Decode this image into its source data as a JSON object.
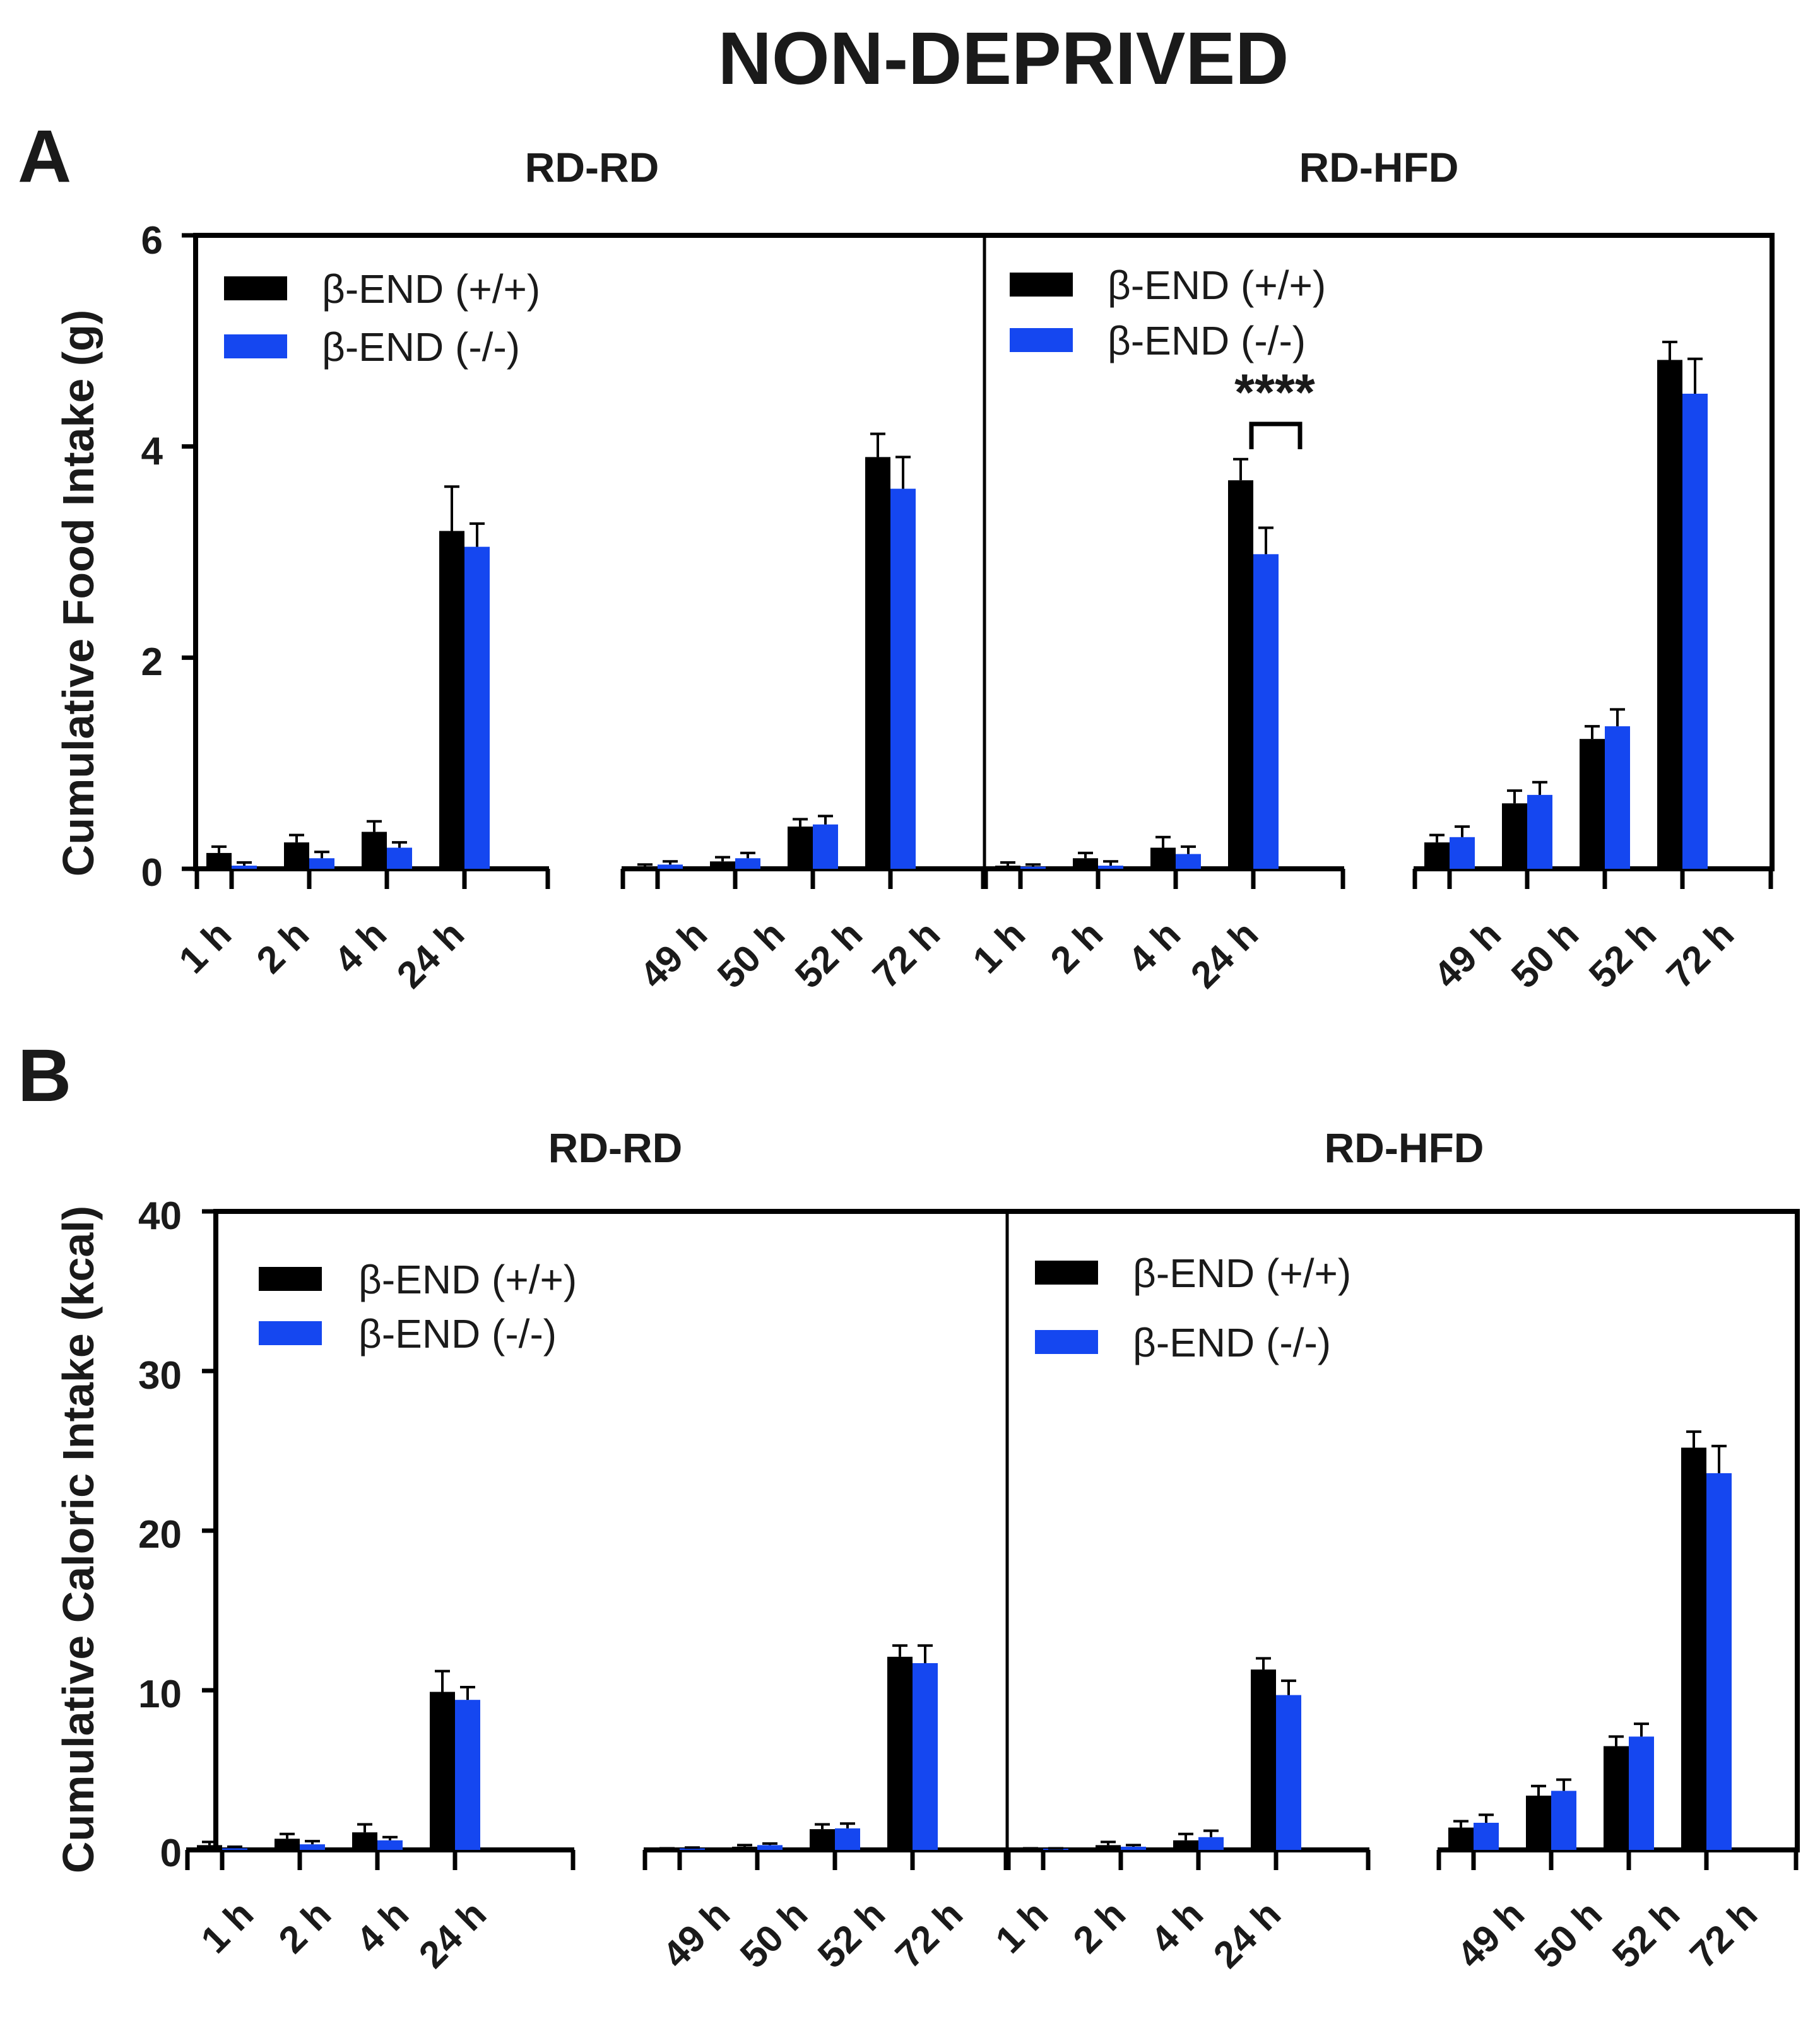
{
  "title": "NON-DEPRIVED",
  "colors": {
    "wt": "#000000",
    "ko": "#1547f0"
  },
  "chart_data": [
    {
      "panel": "A",
      "type": "bar",
      "ylabel": "Cumulative Food Intake (g)",
      "ylim": [
        0,
        6
      ],
      "yticks": [
        "0",
        "2",
        "4",
        "6"
      ],
      "ytick_values": [
        0,
        2,
        4,
        6
      ],
      "groups": [
        {
          "title": "RD-RD",
          "legend": [
            "β-END (+/+)",
            "β-END (-/-)"
          ],
          "segments": [
            {
              "categories": [
                "1 h",
                "2 h",
                "4 h",
                "24 h"
              ],
              "series": [
                {
                  "name": "β-END (+/+)",
                  "values": [
                    0.15,
                    0.25,
                    0.35,
                    3.2
                  ],
                  "errors": [
                    0.06,
                    0.07,
                    0.1,
                    0.42
                  ]
                },
                {
                  "name": "β-END (-/-)",
                  "values": [
                    0.03,
                    0.1,
                    0.2,
                    3.05
                  ],
                  "errors": [
                    0.03,
                    0.06,
                    0.05,
                    0.22
                  ]
                }
              ]
            },
            {
              "categories": [
                "49 h",
                "50 h",
                "52 h",
                "72 h"
              ],
              "series": [
                {
                  "name": "β-END (+/+)",
                  "values": [
                    0.02,
                    0.07,
                    0.4,
                    3.9
                  ],
                  "errors": [
                    0.02,
                    0.04,
                    0.07,
                    0.22
                  ]
                },
                {
                  "name": "β-END (-/-)",
                  "values": [
                    0.04,
                    0.1,
                    0.42,
                    3.6
                  ],
                  "errors": [
                    0.03,
                    0.05,
                    0.08,
                    0.3
                  ]
                }
              ]
            }
          ]
        },
        {
          "title": "RD-HFD",
          "legend": [
            "β-END (+/+)",
            "β-END (-/-)"
          ],
          "annotation": "****",
          "segments": [
            {
              "categories": [
                "1 h",
                "2 h",
                "4 h",
                "24 h"
              ],
              "series": [
                {
                  "name": "β-END (+/+)",
                  "values": [
                    0.03,
                    0.1,
                    0.2,
                    3.68
                  ],
                  "errors": [
                    0.03,
                    0.05,
                    0.1,
                    0.2
                  ]
                },
                {
                  "name": "β-END (-/-)",
                  "values": [
                    0.02,
                    0.03,
                    0.14,
                    2.98
                  ],
                  "errors": [
                    0.02,
                    0.04,
                    0.07,
                    0.25
                  ]
                }
              ]
            },
            {
              "categories": [
                "49 h",
                "50 h",
                "52 h",
                "72 h"
              ],
              "series": [
                {
                  "name": "β-END (+/+)",
                  "values": [
                    0.25,
                    0.62,
                    1.23,
                    4.82
                  ],
                  "errors": [
                    0.07,
                    0.12,
                    0.12,
                    0.17
                  ]
                },
                {
                  "name": "β-END (-/-)",
                  "values": [
                    0.3,
                    0.7,
                    1.35,
                    4.5
                  ],
                  "errors": [
                    0.1,
                    0.12,
                    0.16,
                    0.33
                  ]
                }
              ]
            }
          ]
        }
      ]
    },
    {
      "panel": "B",
      "type": "bar",
      "ylabel": "Cumulative Caloric Intake (kcal)",
      "ylim": [
        0,
        40
      ],
      "yticks": [
        "0",
        "10",
        "20",
        "30",
        "40"
      ],
      "ytick_values": [
        0,
        10,
        20,
        30,
        40
      ],
      "groups": [
        {
          "title": "RD-RD",
          "legend": [
            "β-END  (+/+)",
            "β-END  (-/-)"
          ],
          "segments": [
            {
              "categories": [
                "1 h",
                "2 h",
                "4 h",
                "24 h"
              ],
              "series": [
                {
                  "name": "β-END (+/+)",
                  "values": [
                    0.3,
                    0.7,
                    1.1,
                    9.9
                  ],
                  "errors": [
                    0.2,
                    0.3,
                    0.5,
                    1.3
                  ]
                },
                {
                  "name": "β-END (-/-)",
                  "values": [
                    0.1,
                    0.35,
                    0.6,
                    9.4
                  ],
                  "errors": [
                    0.1,
                    0.2,
                    0.2,
                    0.8
                  ]
                }
              ]
            },
            {
              "categories": [
                "49 h",
                "50 h",
                "52 h",
                "72 h"
              ],
              "series": [
                {
                  "name": "β-END (+/+)",
                  "values": [
                    0.05,
                    0.2,
                    1.3,
                    12.1
                  ],
                  "errors": [
                    0.05,
                    0.1,
                    0.3,
                    0.7
                  ]
                },
                {
                  "name": "β-END (-/-)",
                  "values": [
                    0.1,
                    0.3,
                    1.35,
                    11.7
                  ],
                  "errors": [
                    0.05,
                    0.1,
                    0.3,
                    1.1
                  ]
                }
              ]
            }
          ]
        },
        {
          "title": "RD-HFD",
          "legend": [
            "β-END (+/+)",
            "β-END (-/-)"
          ],
          "segments": [
            {
              "categories": [
                "1 h",
                "2 h",
                "4 h",
                "24 h"
              ],
              "series": [
                {
                  "name": "β-END (+/+)",
                  "values": [
                    0.05,
                    0.3,
                    0.6,
                    11.3
                  ],
                  "errors": [
                    0.05,
                    0.2,
                    0.4,
                    0.7
                  ]
                },
                {
                  "name": "β-END (-/-)",
                  "values": [
                    0.05,
                    0.2,
                    0.8,
                    9.7
                  ],
                  "errors": [
                    0.05,
                    0.1,
                    0.4,
                    0.9
                  ]
                }
              ]
            },
            {
              "categories": [
                "49 h",
                "50 h",
                "52 h",
                "72 h"
              ],
              "series": [
                {
                  "name": "β-END (+/+)",
                  "values": [
                    1.4,
                    3.4,
                    6.5,
                    25.2
                  ],
                  "errors": [
                    0.4,
                    0.6,
                    0.6,
                    1.0
                  ]
                },
                {
                  "name": "β-END (-/-)",
                  "values": [
                    1.7,
                    3.7,
                    7.1,
                    23.6
                  ],
                  "errors": [
                    0.5,
                    0.7,
                    0.8,
                    1.7
                  ]
                }
              ]
            }
          ]
        }
      ]
    }
  ]
}
